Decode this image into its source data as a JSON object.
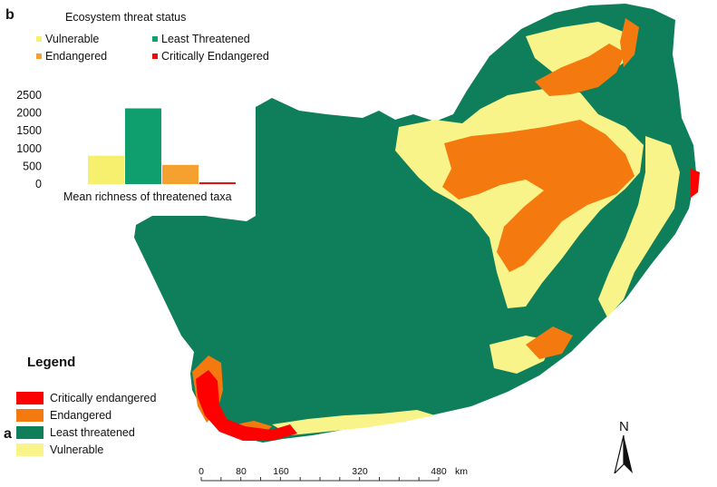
{
  "panel_b": {
    "label": "b",
    "chart_data": {
      "type": "bar",
      "title": "Ecosystem threat status",
      "xlabel": "Mean richness of threatened taxa",
      "categories": [
        "Vulnerable",
        "Least Threatened",
        "Endangered",
        "Critically Endangered"
      ],
      "values": [
        800,
        2130,
        540,
        50
      ],
      "colors": [
        "#f7f06e",
        "#0f9e6e",
        "#f4a130",
        "#e01010"
      ],
      "yticks": [
        "0",
        "500",
        "1000",
        "1500",
        "2000",
        "2500"
      ],
      "ylim": [
        0,
        2500
      ],
      "legend_placement": "top",
      "grid": false
    }
  },
  "map": {
    "label": "a",
    "legend_title": "Legend",
    "legend_items": [
      {
        "label": "Critically endangered",
        "color": "#ff0000"
      },
      {
        "label": "Endangered",
        "color": "#f47a10"
      },
      {
        "label": "Least threatened",
        "color": "#0e7f5a"
      },
      {
        "label": "Vulnerable",
        "color": "#f9f48a"
      }
    ],
    "scale_ticks": [
      "0",
      "80",
      "160",
      "320",
      "480"
    ],
    "scale_unit": "km",
    "north_label": "N"
  }
}
